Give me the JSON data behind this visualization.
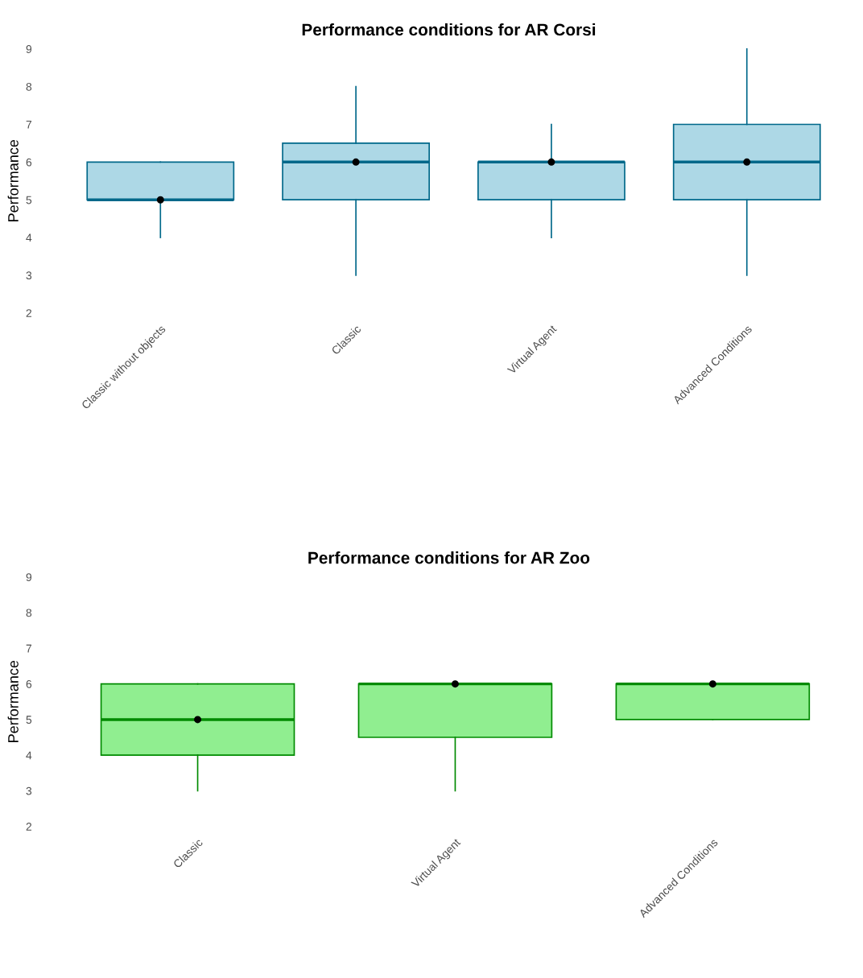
{
  "chart_data": [
    {
      "type": "box",
      "title": "Performance conditions for AR Corsi",
      "ylabel": "Performance",
      "categories": [
        "Classic without objects",
        "Classic",
        "Virtual Agent",
        "Advanced Conditions"
      ],
      "ylim": [
        2,
        9
      ],
      "yticks": [
        2,
        3,
        4,
        5,
        6,
        7,
        8,
        9
      ],
      "grid": false,
      "marker": "circle",
      "series": [
        {
          "color": "#add8e6",
          "boxes": [
            {
              "low": 4,
              "q1": 5,
              "median": 5,
              "q3": 6,
              "high": 6,
              "mean": 5
            },
            {
              "low": 3,
              "q1": 5,
              "median": 6,
              "q3": 6.5,
              "high": 8,
              "mean": 6
            },
            {
              "low": 4,
              "q1": 5,
              "median": 6,
              "q3": 6,
              "high": 7,
              "mean": 6
            },
            {
              "low": 3,
              "q1": 5,
              "median": 6,
              "q3": 7,
              "high": 9,
              "mean": 6
            }
          ]
        }
      ]
    },
    {
      "type": "box",
      "title": "Performance conditions for AR Zoo",
      "ylabel": "Performance",
      "categories": [
        "Classic",
        "Virtual Agent",
        "Advanced Conditions"
      ],
      "ylim": [
        2,
        9
      ],
      "yticks": [
        2,
        3,
        4,
        5,
        6,
        7,
        8,
        9
      ],
      "grid": false,
      "marker": "circle",
      "series": [
        {
          "color": "#90ee90",
          "boxes": [
            {
              "low": 3,
              "q1": 4,
              "median": 5,
              "q3": 6,
              "high": 6,
              "mean": 5
            },
            {
              "low": 3,
              "q1": 4.5,
              "median": 6,
              "q3": 6,
              "high": 6,
              "mean": 6
            },
            {
              "low": 5,
              "q1": 5,
              "median": 6,
              "q3": 6,
              "high": 6,
              "mean": 6
            }
          ]
        }
      ]
    }
  ]
}
